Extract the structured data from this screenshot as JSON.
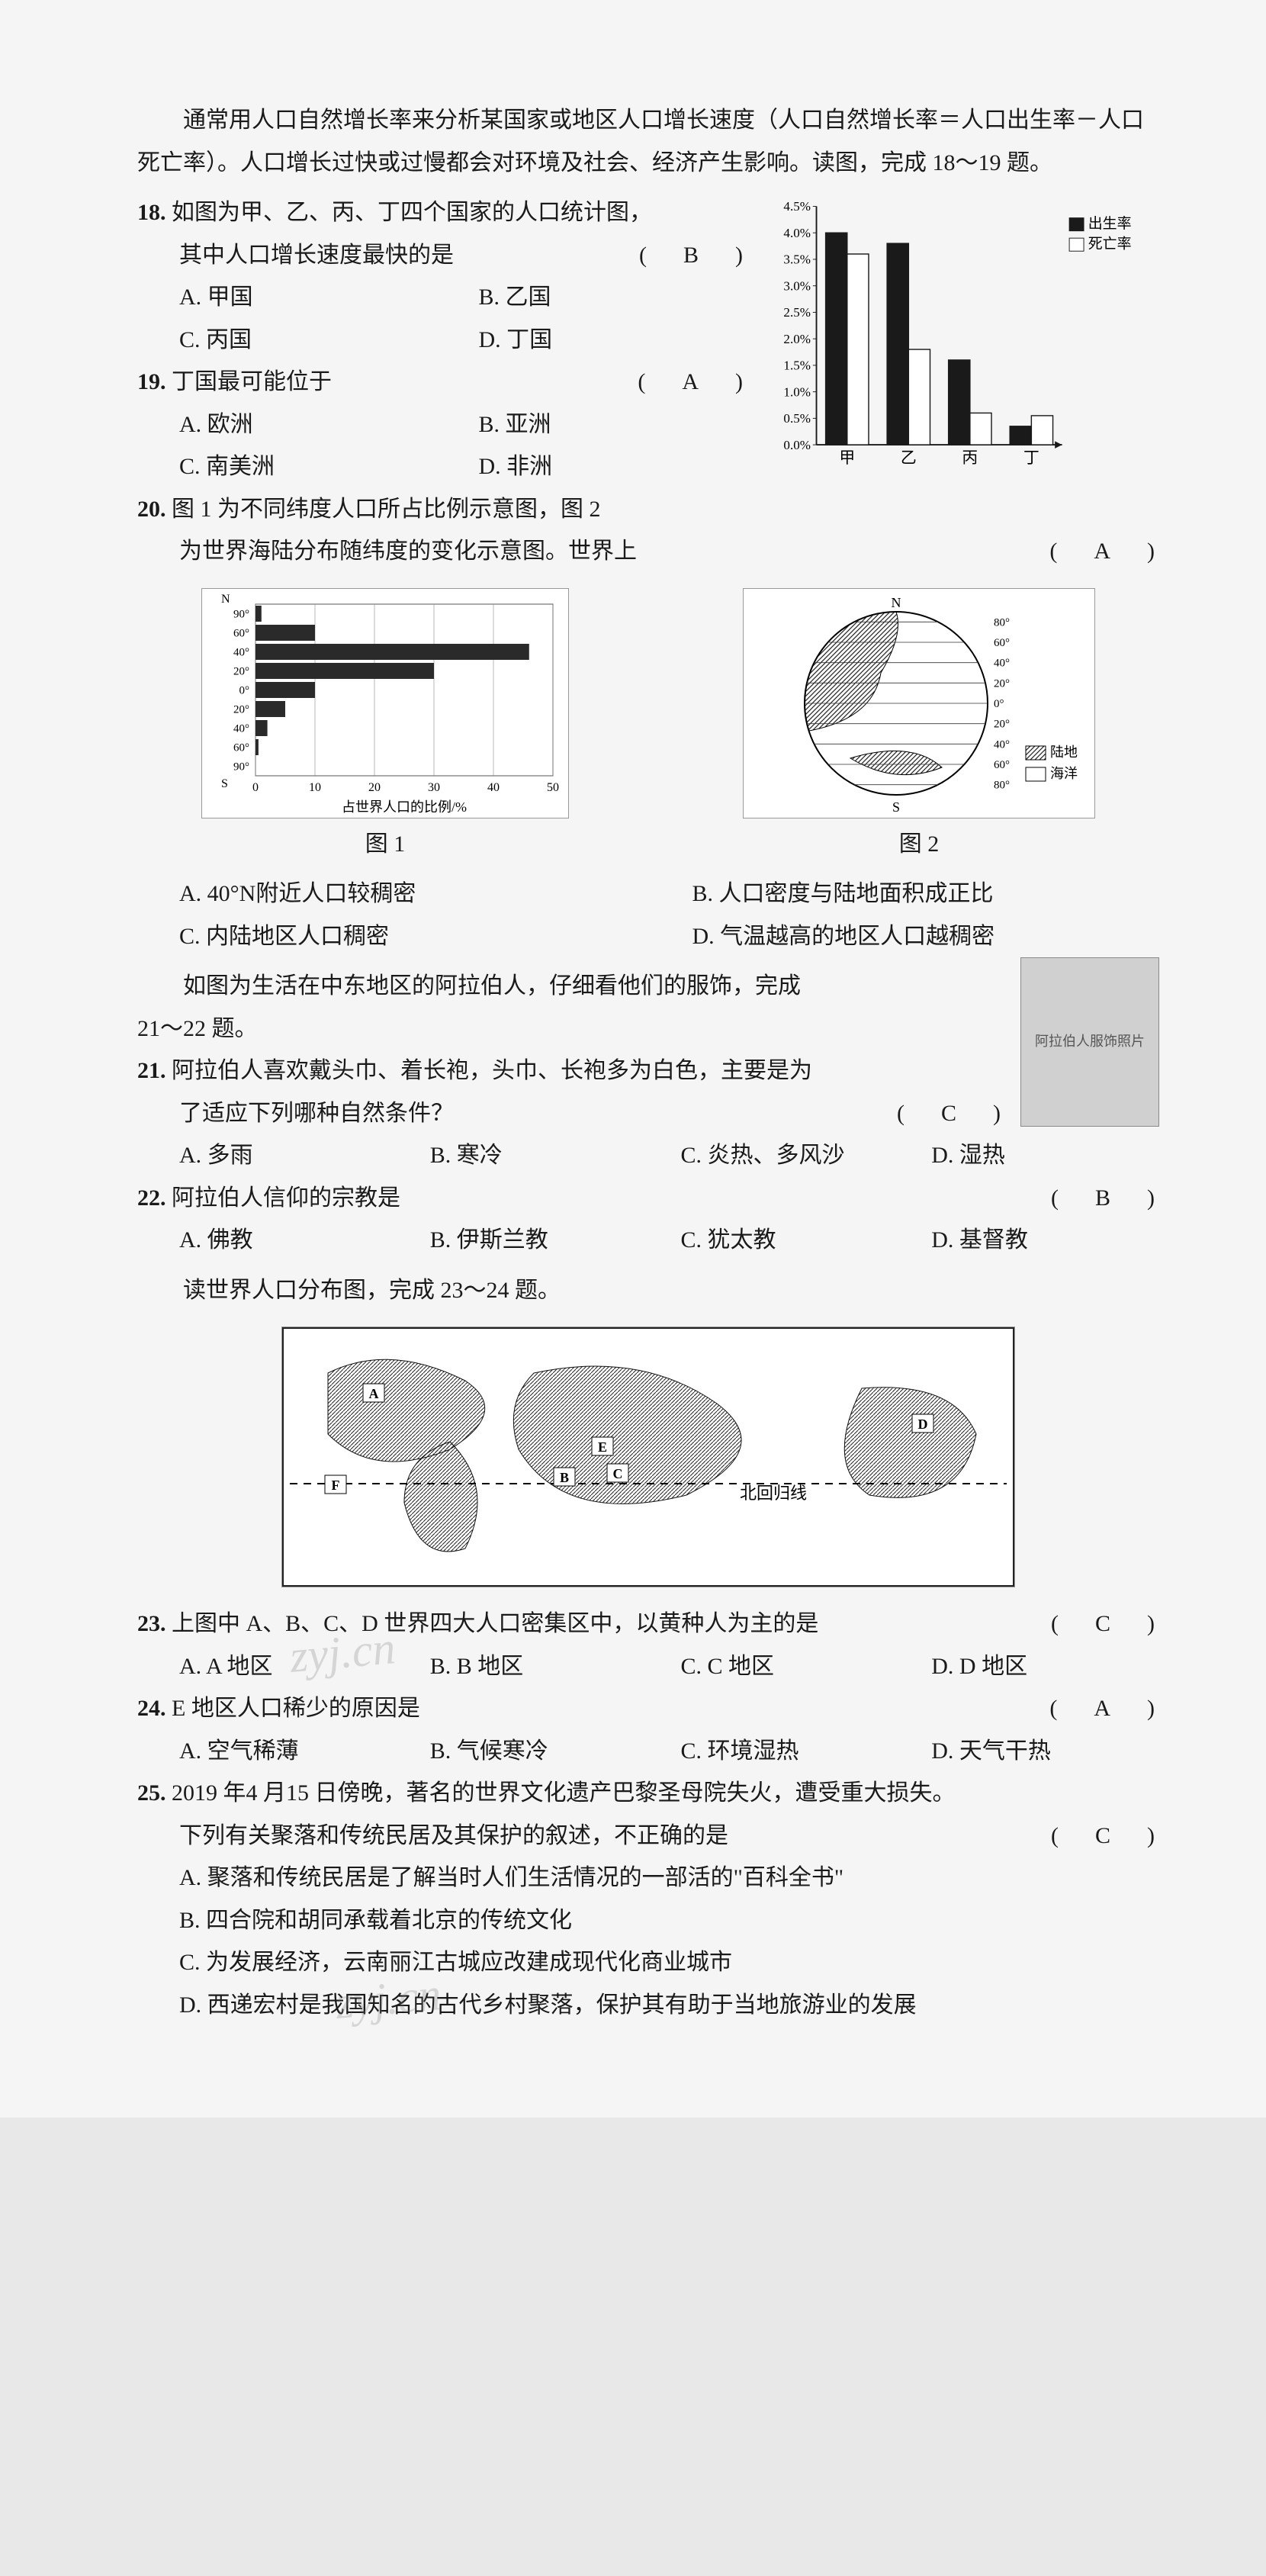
{
  "intro": "通常用人口自然增长率来分析某国家或地区人口增长速度（人口自然增长率＝人口出生率－人口死亡率）。人口增长过快或过慢都会对环境及社会、经济产生影响。读图，完成 18～19 题。",
  "q18": {
    "num": "18.",
    "stem1": "如图为甲、乙、丙、丁四个国家的人口统计图，",
    "stem2": "其中人口增长速度最快的是",
    "answer": "B",
    "opts": {
      "A": "A. 甲国",
      "B": "B. 乙国",
      "C": "C. 丙国",
      "D": "D. 丁国"
    }
  },
  "q19": {
    "num": "19.",
    "stem": "丁国最可能位于",
    "answer": "A",
    "opts": {
      "A": "A. 欧洲",
      "B": "B. 亚洲",
      "C": "C. 南美洲",
      "D": "D. 非洲"
    }
  },
  "barChart": {
    "type": "bar",
    "ylim": [
      0,
      4.5
    ],
    "ytick_step": 0.5,
    "y_suffix": "%",
    "categories": [
      "甲",
      "乙",
      "丙",
      "丁"
    ],
    "series": [
      {
        "name": "出生率",
        "color": "#1a1a1a",
        "values": [
          4.0,
          3.8,
          1.6,
          0.35
        ]
      },
      {
        "name": "死亡率",
        "color": "#ffffff",
        "values": [
          3.6,
          1.8,
          0.6,
          0.55
        ]
      }
    ],
    "border_color": "#1a1a1a",
    "bar_group_width": 0.7
  },
  "q20": {
    "num": "20.",
    "stem1": "图 1 为不同纬度人口所占比例示意图，图 2",
    "stem2": "为世界海陆分布随纬度的变化示意图。世界上",
    "answer": "A",
    "fig1_cap": "图 1",
    "fig2_cap": "图 2",
    "opts": {
      "A": "A. 40°N附近人口较稠密",
      "B": "B. 人口密度与陆地面积成正比",
      "C": "C. 内陆地区人口稠密",
      "D": "D. 气温越高的地区人口越稠密"
    }
  },
  "fig1": {
    "type": "bar-horizontal",
    "ylabels_top": [
      "N",
      "90°",
      "60°",
      "40°",
      "20°",
      "0°"
    ],
    "ylabels_bot": [
      "20°",
      "40°",
      "60°",
      "90°",
      "S"
    ],
    "xlim": [
      0,
      50
    ],
    "xticks": [
      0,
      10,
      20,
      30,
      40,
      50
    ],
    "xlabel": "占世界人口的比例/%",
    "bars": [
      {
        "lat": "90N",
        "v": 1
      },
      {
        "lat": "60N",
        "v": 10
      },
      {
        "lat": "40N",
        "v": 46
      },
      {
        "lat": "20N",
        "v": 30
      },
      {
        "lat": "0",
        "v": 10
      },
      {
        "lat": "20S",
        "v": 5
      },
      {
        "lat": "40S",
        "v": 2
      },
      {
        "lat": "60S",
        "v": 0.5
      },
      {
        "lat": "90S",
        "v": 0
      }
    ],
    "bar_color": "#2a2a2a",
    "bg": "#ffffff",
    "grid": "#555"
  },
  "fig2": {
    "type": "pie-like-globe",
    "lat_labels": [
      "80°",
      "60°",
      "40°",
      "20°",
      "0°",
      "20°",
      "40°",
      "60°",
      "80°"
    ],
    "poles": {
      "N": "N",
      "S": "S"
    },
    "legend": [
      {
        "label": "陆地",
        "color": "#2a2a2a",
        "pattern": "hatched"
      },
      {
        "label": "海洋",
        "color": "#ffffff"
      }
    ]
  },
  "arab_intro": "如图为生活在中东地区的阿拉伯人，仔细看他们的服饰，完成",
  "arab_intro2": "21～22 题。",
  "q21": {
    "num": "21.",
    "stem1": "阿拉伯人喜欢戴头巾、着长袍，头巾、长袍多为白色，主要是为",
    "stem2": "了适应下列哪种自然条件？",
    "answer": "C",
    "opts": {
      "A": "A. 多雨",
      "B": "B. 寒冷",
      "C": "C. 炎热、多风沙",
      "D": "D. 湿热"
    }
  },
  "q22": {
    "num": "22.",
    "stem": "阿拉伯人信仰的宗教是",
    "answer": "B",
    "opts": {
      "A": "A. 佛教",
      "B": "B. 伊斯兰教",
      "C": "C. 犹太教",
      "D": "D. 基督教"
    }
  },
  "map_intro": "读世界人口分布图，完成 23～24 题。",
  "map_label": "北回归线",
  "map_markers": [
    "A",
    "B",
    "C",
    "D",
    "E",
    "F"
  ],
  "q23": {
    "num": "23.",
    "stem": "上图中 A、B、C、D 世界四大人口密集区中，以黄种人为主的是",
    "answer": "C",
    "opts": {
      "A": "A. A 地区",
      "B": "B. B 地区",
      "C": "C. C 地区",
      "D": "D. D 地区"
    }
  },
  "q24": {
    "num": "24.",
    "stem": "E 地区人口稀少的原因是",
    "answer": "A",
    "opts": {
      "A": "A. 空气稀薄",
      "B": "B. 气候寒冷",
      "C": "C. 环境湿热",
      "D": "D. 天气干热"
    }
  },
  "q25": {
    "num": "25.",
    "stem1": "2019 年4 月15 日傍晚，著名的世界文化遗产巴黎圣母院失火，遭受重大损失。",
    "stem2": "下列有关聚落和传统民居及其保护的叙述，不正确的是",
    "answer": "C",
    "opts": {
      "A": "A. 聚落和传统民居是了解当时人们生活情况的一部活的\"百科全书\"",
      "B": "B. 四合院和胡同承载着北京的传统文化",
      "C": "C. 为发展经济，云南丽江古城应改建成现代化商业城市",
      "D": "D. 西递宏村是我国知名的古代乡村聚落，保护其有助于当地旅游业的发展"
    }
  },
  "watermarks": [
    "zyj.cn",
    "zyj.cn"
  ],
  "arab_img_alt": "阿拉伯人服饰照片"
}
